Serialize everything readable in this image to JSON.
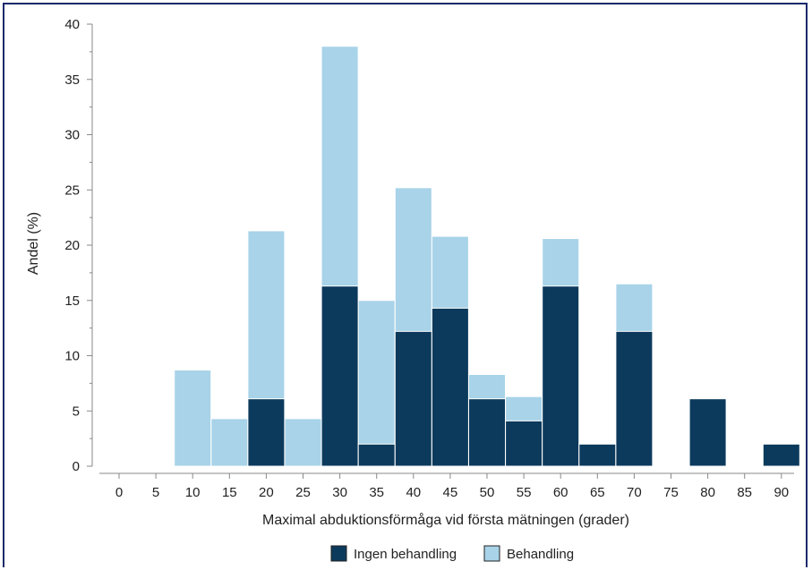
{
  "colors": {
    "ingen": "#0c3a5c",
    "behandling": "#a8d3e8",
    "axis": "#888888",
    "frame": "#1a2a6c"
  },
  "chart_data": {
    "type": "bar",
    "stacked": "overlay",
    "xlabel": "Maximal abduktionsförmåga vid första mätningen (grader)",
    "ylabel": "Andel (%)",
    "ylim": [
      0,
      40
    ],
    "yticks": [
      "0",
      "5",
      "10",
      "15",
      "20",
      "25",
      "30",
      "35",
      "40"
    ],
    "categories": [
      "0",
      "5",
      "10",
      "15",
      "20",
      "25",
      "30",
      "35",
      "40",
      "45",
      "50",
      "55",
      "60",
      "65",
      "70",
      "75",
      "80",
      "85",
      "90"
    ],
    "series": [
      {
        "name": "Behandling",
        "values": [
          0,
          0,
          8.7,
          4.3,
          21.3,
          4.3,
          38,
          15,
          25.2,
          20.8,
          8.3,
          6.3,
          20.6,
          0,
          16.5,
          0,
          0,
          0,
          0
        ]
      },
      {
        "name": "Ingen behandling",
        "values": [
          0,
          0,
          0,
          0,
          6.1,
          0,
          16.3,
          2,
          12.2,
          14.3,
          6.1,
          4.1,
          16.3,
          2,
          12.2,
          0,
          6.1,
          0,
          2
        ]
      }
    ],
    "legend": [
      "Ingen behandling",
      "Behandling"
    ],
    "legend_position": "bottom"
  }
}
